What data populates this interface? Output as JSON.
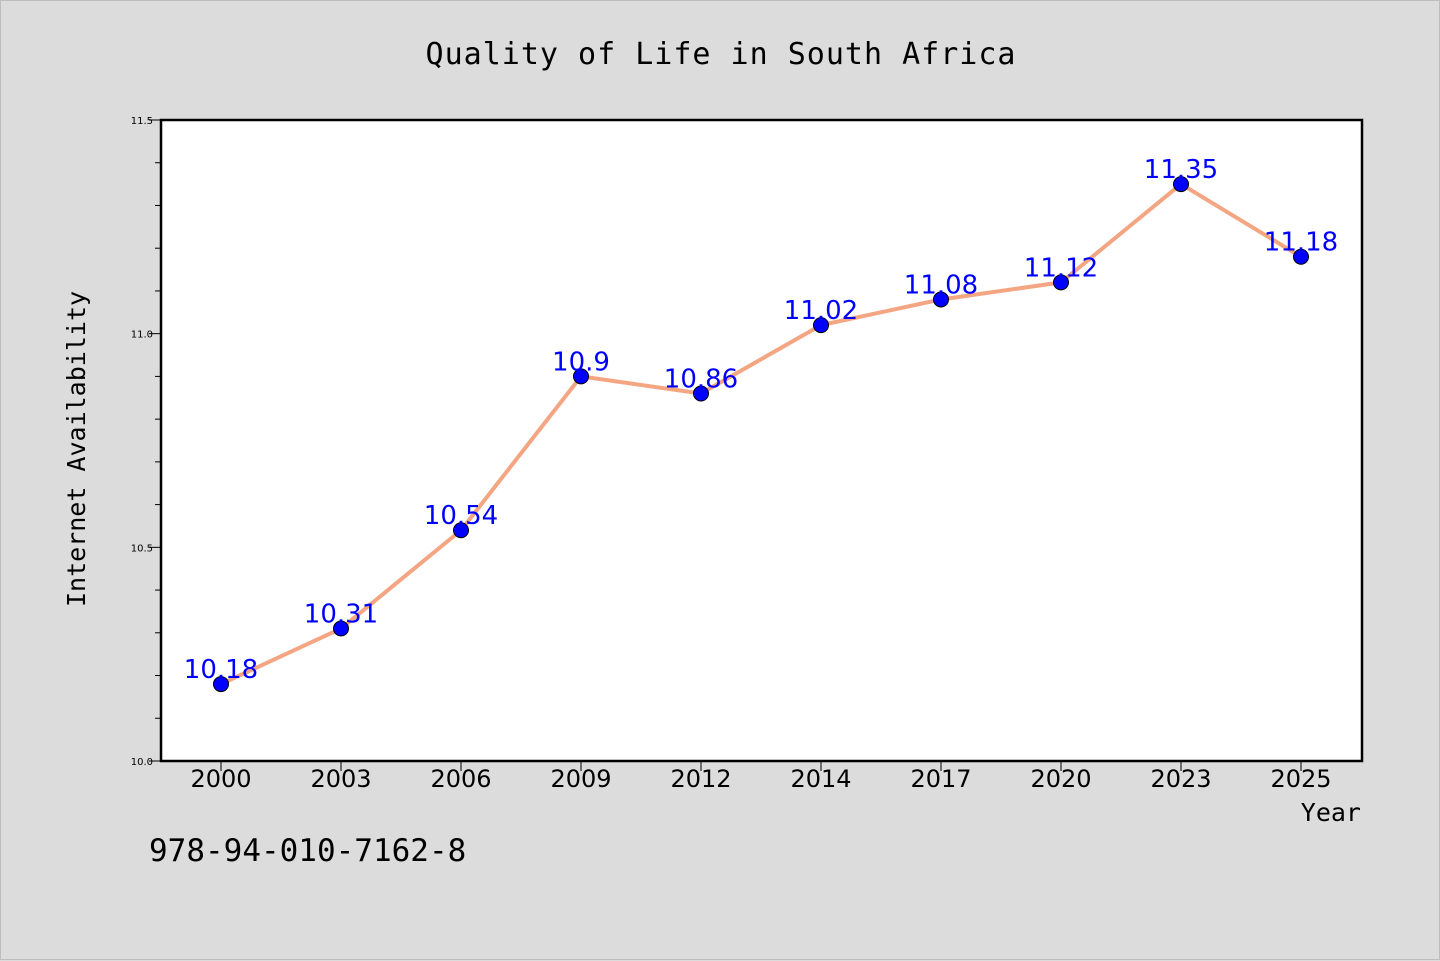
{
  "chart_data": {
    "type": "line",
    "title": "Quality of Life in South Africa",
    "xlabel": "Year",
    "ylabel": "Internet Availability",
    "categories": [
      "2000",
      "2003",
      "2006",
      "2009",
      "2012",
      "2014",
      "2017",
      "2020",
      "2023",
      "2025"
    ],
    "series": [
      {
        "values": [
          10.18,
          10.31,
          10.54,
          10.9,
          10.86,
          11.02,
          11.08,
          11.12,
          11.35,
          11.18
        ],
        "data_labels": [
          "10.18",
          "10.31",
          "10.54",
          "10.9",
          "10.86",
          "11.02",
          "11.08",
          "11.12",
          "11.35",
          "11.18"
        ],
        "line_color": "#f4a582",
        "marker_color": "#0000ff"
      }
    ],
    "ylim": [
      10.0,
      11.5
    ],
    "yticks_major": [
      "10.0",
      "10.5",
      "11.0",
      "11.5"
    ],
    "grid": false,
    "legend": "none"
  },
  "footer": {
    "code": "978-94-010-7162-8"
  },
  "colors": {
    "background": "#dcdcdc",
    "plot_background": "#ffffff",
    "line": "#f4a582",
    "marker": "#0000ff",
    "data_label": "#0000ff"
  }
}
